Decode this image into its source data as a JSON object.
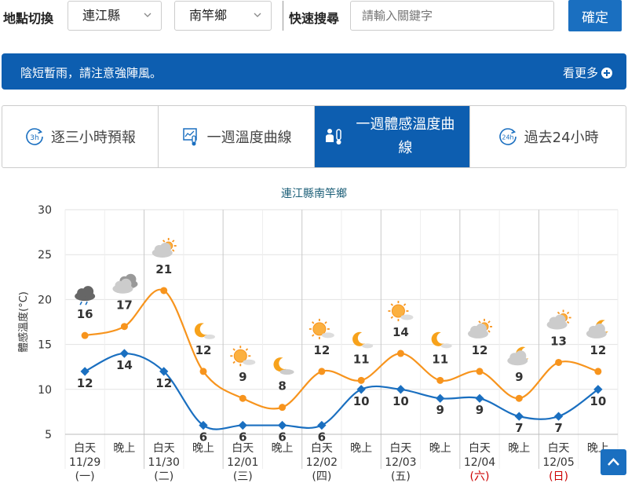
{
  "filters": {
    "region_label": "地點切換",
    "county": "連江縣",
    "township": "南竿鄉",
    "search_label": "快速搜尋",
    "search_placeholder": "請輸入關鍵字",
    "confirm_label": "確定"
  },
  "alert": {
    "message": "陰短暫雨，請注意強陣風。",
    "more_label": "看更多"
  },
  "tabs": [
    {
      "label": "逐三小時預報",
      "icon": "3h-clock-icon",
      "active": false
    },
    {
      "label": "一週溫度曲線",
      "icon": "thermometer-chart-icon",
      "active": false
    },
    {
      "label": "一週體感溫度曲線",
      "icon": "person-thermometer-icon",
      "active": true
    },
    {
      "label": "過去24小時",
      "icon": "24h-clock-icon",
      "active": false
    }
  ],
  "chart_data": {
    "type": "line",
    "title": "連江縣南竿鄉",
    "ylabel": "體感溫度(°C)",
    "ylim": [
      5,
      30
    ],
    "yticks": [
      "5",
      "10",
      "15",
      "20",
      "25",
      "30"
    ],
    "grid": true,
    "categories": [
      {
        "period": "白天",
        "date": "11/29",
        "weekday": "(一)",
        "weekend": false
      },
      {
        "period": "晚上",
        "date": "",
        "weekday": "",
        "weekend": false
      },
      {
        "period": "白天",
        "date": "11/30",
        "weekday": "(二)",
        "weekend": false
      },
      {
        "period": "晚上",
        "date": "",
        "weekday": "",
        "weekend": false
      },
      {
        "period": "白天",
        "date": "12/01",
        "weekday": "(三)",
        "weekend": false
      },
      {
        "period": "晚上",
        "date": "",
        "weekday": "",
        "weekend": false
      },
      {
        "period": "白天",
        "date": "12/02",
        "weekday": "(四)",
        "weekend": false
      },
      {
        "period": "晚上",
        "date": "",
        "weekday": "",
        "weekend": false
      },
      {
        "period": "白天",
        "date": "12/03",
        "weekday": "(五)",
        "weekend": false
      },
      {
        "period": "晚上",
        "date": "",
        "weekday": "",
        "weekend": false
      },
      {
        "period": "白天",
        "date": "12/04",
        "weekday": "(六)",
        "weekend": true
      },
      {
        "period": "晚上",
        "date": "",
        "weekday": "",
        "weekend": false
      },
      {
        "period": "白天",
        "date": "12/05",
        "weekday": "(日)",
        "weekend": true
      },
      {
        "period": "晚上",
        "date": "",
        "weekday": "",
        "weekend": false
      }
    ],
    "series": [
      {
        "color": "#f7941d",
        "values": [
          16,
          17,
          21,
          12,
          9,
          8,
          12,
          11,
          14,
          11,
          12,
          9,
          13,
          12
        ]
      },
      {
        "color": "#1a6fc0",
        "values": [
          12,
          14,
          12,
          6,
          6,
          6,
          6,
          10,
          10,
          9,
          9,
          7,
          7,
          10
        ]
      }
    ],
    "weather_icons": [
      "rain-cloud-icon",
      "cloud-icon",
      "partly-cloudy-day-icon",
      "moon-icon",
      "sunny-cloud-icon",
      "moon-cloud-icon",
      "sunny-cloud-icon",
      "moon-icon",
      "sunny-cloud-icon",
      "moon-icon",
      "partly-cloudy-day-icon",
      "cloudy-night-icon",
      "partly-cloudy-day-icon",
      "partly-cloudy-night-icon"
    ],
    "weekend_color": "#cc0000"
  }
}
